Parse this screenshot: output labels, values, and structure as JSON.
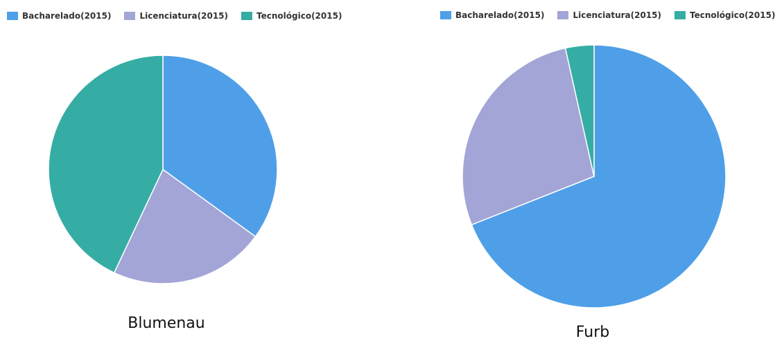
{
  "legend_labels": [
    "Bacharelado(2015)",
    "Licenciatura(2015)",
    "Tecnológico(2015)"
  ],
  "colors": {
    "bacharelado": "#4f9fe8",
    "licenciatura": "#a2a5d6",
    "tecnologico": "#35ada4"
  },
  "chart_data": [
    {
      "type": "pie",
      "title": "Blumenau",
      "labels": [
        "Bacharelado(2015)",
        "Licenciatura(2015)",
        "Tecnológico(2015)"
      ],
      "values": [
        35.0,
        22.0,
        43.0
      ],
      "legend": "top-left"
    },
    {
      "type": "pie",
      "title": "Furb",
      "labels": [
        "Bacharelado(2015)",
        "Licenciatura(2015)",
        "Tecnológico(2015)"
      ],
      "values": [
        69.0,
        27.5,
        3.5
      ],
      "legend": "top-right"
    }
  ]
}
